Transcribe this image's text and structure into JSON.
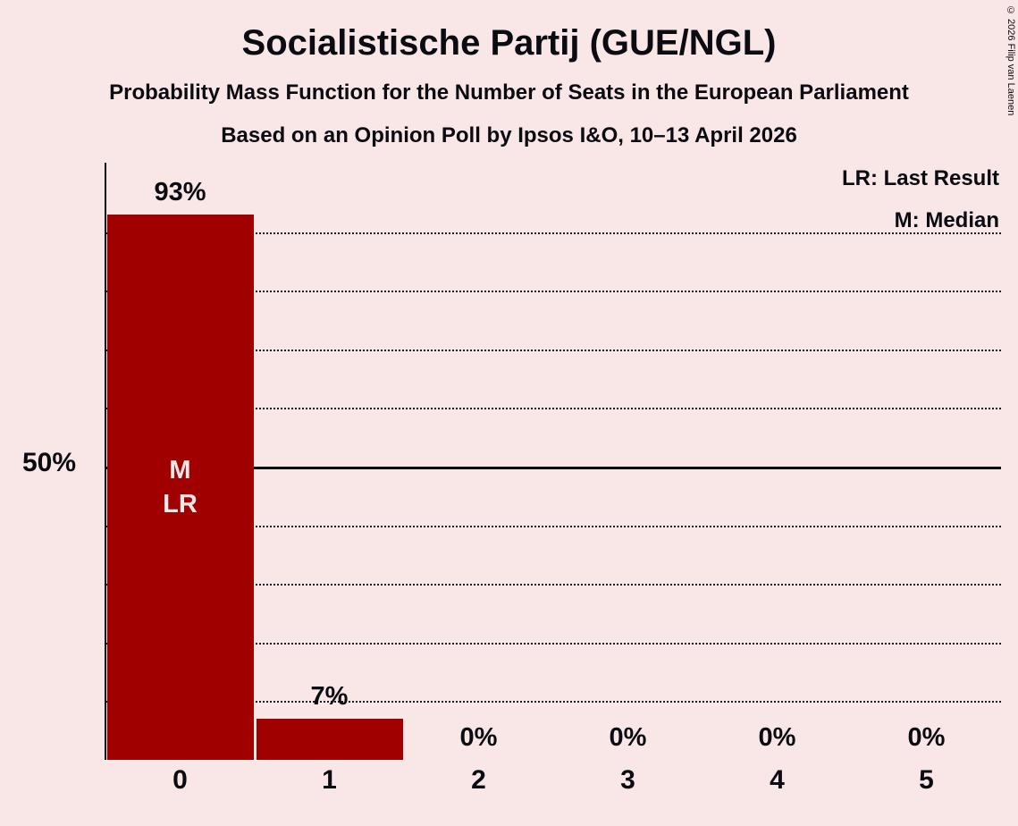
{
  "title": "Socialistische Partij (GUE/NGL)",
  "subtitle1": "Probability Mass Function for the Number of Seats in the European Parliament",
  "subtitle2": "Based on an Opinion Poll by Ipsos I&O, 10–13 April 2026",
  "copyright": "© 2026 Filip van Laenen",
  "legend": {
    "lr": "LR: Last Result",
    "m": "M: Median"
  },
  "y_axis_label": "50%",
  "colors": {
    "background": "#f9e6e6",
    "bar": "#a00000",
    "text": "#0b0b12",
    "bar_annotation_text": "#f9e6e6"
  },
  "chart_data": {
    "type": "bar",
    "title": "Socialistische Partij (GUE/NGL)",
    "categories": [
      "0",
      "1",
      "2",
      "3",
      "4",
      "5"
    ],
    "values": [
      93,
      7,
      0,
      0,
      0,
      0
    ],
    "value_labels": [
      "93%",
      "7%",
      "0%",
      "0%",
      "0%",
      "0%"
    ],
    "bar_annotations": [
      [
        "M",
        "LR"
      ],
      [],
      [],
      [],
      [],
      []
    ],
    "xlabel": "",
    "ylabel": "",
    "ylim": [
      0,
      100
    ],
    "gridlines_percent": [
      10,
      20,
      30,
      40,
      50,
      60,
      70,
      80,
      90
    ],
    "solid_line_percent": 50,
    "grid": "dotted horizontal",
    "legend_position": "top-right"
  }
}
